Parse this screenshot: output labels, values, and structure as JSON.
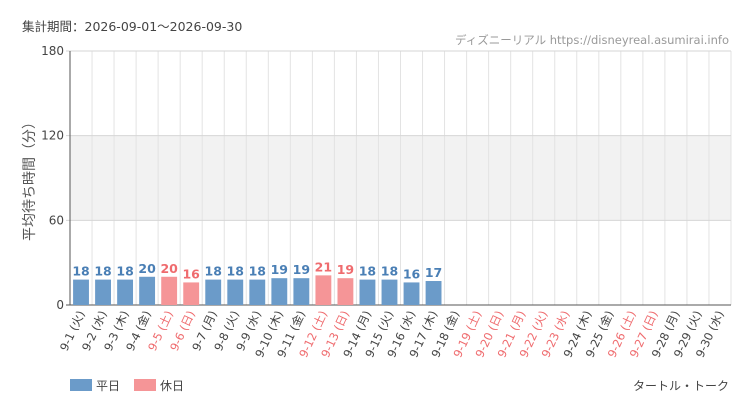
{
  "header": {
    "period_label": "集計期間：2026-09-01～2026-09-30",
    "source_label": "ディズニーリアル https://disneyreal.asumirai.info"
  },
  "legend": {
    "weekday_label": "平日",
    "holiday_label": "休日"
  },
  "footer": {
    "attraction_name": "タートル・トーク"
  },
  "colors": {
    "weekday": "#6b9bc9",
    "holiday": "#f59597",
    "weekday_text": "#4a7fb5",
    "holiday_text": "#ef6b6e",
    "band": "#f2f2f2",
    "grid": "#e3e3e3"
  },
  "chart_data": {
    "type": "bar",
    "ylabel": "平均待ち時間（分）",
    "ylim": [
      0,
      180
    ],
    "yticks": [
      0,
      60,
      120,
      180
    ],
    "shaded_band": [
      60,
      120
    ],
    "categories": [
      "9-1 (火)",
      "9-2 (水)",
      "9-3 (木)",
      "9-4 (金)",
      "9-5 (土)",
      "9-6 (日)",
      "9-7 (月)",
      "9-8 (火)",
      "9-9 (水)",
      "9-10 (木)",
      "9-11 (金)",
      "9-12 (土)",
      "9-13 (日)",
      "9-14 (月)",
      "9-15 (火)",
      "9-16 (水)",
      "9-17 (木)",
      "9-18 (金)",
      "9-19 (土)",
      "9-20 (日)",
      "9-21 (月)",
      "9-22 (火)",
      "9-23 (水)",
      "9-24 (木)",
      "9-25 (金)",
      "9-26 (土)",
      "9-27 (日)",
      "9-28 (月)",
      "9-29 (火)",
      "9-30 (水)"
    ],
    "holiday": [
      false,
      false,
      false,
      false,
      true,
      true,
      false,
      false,
      false,
      false,
      false,
      true,
      true,
      false,
      false,
      false,
      false,
      false,
      true,
      true,
      true,
      true,
      true,
      false,
      false,
      true,
      true,
      false,
      false,
      false
    ],
    "values": [
      18,
      18,
      18,
      20,
      20,
      16,
      18,
      18,
      18,
      19,
      19,
      21,
      19,
      18,
      18,
      16,
      17,
      null,
      null,
      null,
      null,
      null,
      null,
      null,
      null,
      null,
      null,
      null,
      null,
      null
    ]
  }
}
